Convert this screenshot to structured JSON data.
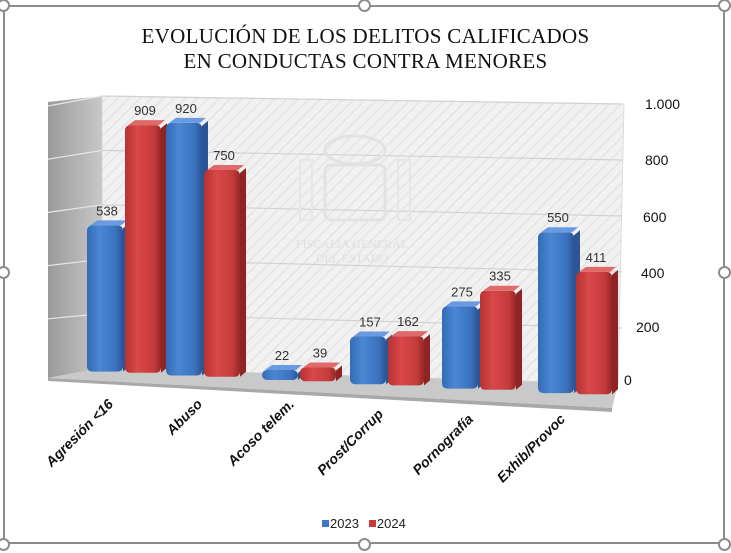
{
  "chart_data": {
    "type": "bar",
    "title": "EVOLUCIÓN DE LOS DELITOS CALIFICADOS EN CONDUCTAS CONTRA MENORES",
    "title_lines": [
      "EVOLUCIÓN DE LOS DELITOS CALIFICADOS",
      "EN CONDUCTAS CONTRA MENORES"
    ],
    "categories": [
      "Agresión <16",
      "Abuso",
      "Acoso telem.",
      "Prost/Corrup",
      "Pornografía",
      "Exhib/Provoc"
    ],
    "series": [
      {
        "name": "2023",
        "color": "#3f78c4",
        "values": [
          538,
          920,
          22,
          157,
          275,
          550
        ]
      },
      {
        "name": "2024",
        "color": "#c93a3a",
        "values": [
          909,
          750,
          39,
          162,
          335,
          411
        ]
      }
    ],
    "data_labels": {
      "2023": [
        "538",
        "920",
        "22",
        "157",
        "275",
        "550"
      ],
      "2024": [
        "909",
        "750",
        "39",
        "162",
        "335",
        "411"
      ]
    },
    "xlabel": "",
    "ylabel": "",
    "ylim": [
      0,
      1000
    ],
    "yticks": [
      0,
      200,
      400,
      600,
      800,
      1000
    ],
    "ytick_labels": [
      "0",
      "200",
      "400",
      "600",
      "800",
      "1.000"
    ],
    "y_axis_position": "right",
    "grid": true,
    "legend_position": "bottom",
    "style": "3d-column",
    "watermark": [
      "FISCALIA GENERAL",
      "DEL ESTADO"
    ]
  }
}
